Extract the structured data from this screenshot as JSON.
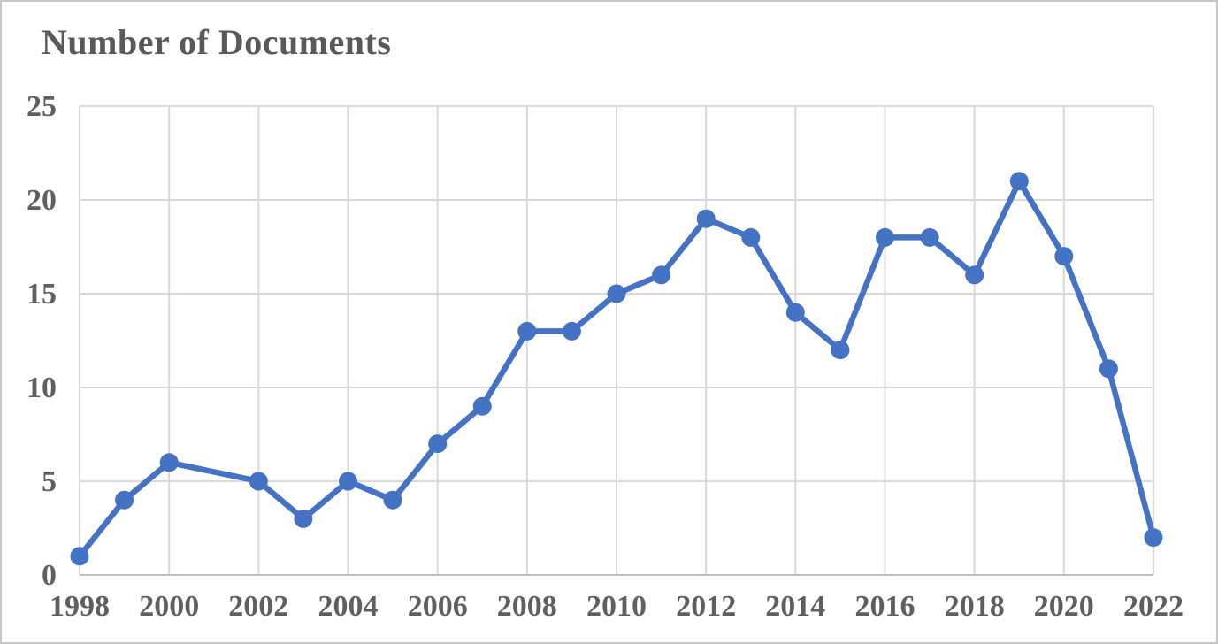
{
  "figure": {
    "title": "Number of Documents"
  },
  "chart_data": {
    "type": "line",
    "title": "Number of Documents",
    "x": [
      1998,
      1999,
      2000,
      2001,
      2002,
      2003,
      2004,
      2005,
      2006,
      2007,
      2008,
      2009,
      2010,
      2011,
      2012,
      2013,
      2014,
      2015,
      2016,
      2017,
      2018,
      2019,
      2020,
      2021,
      2022
    ],
    "series": [
      {
        "name": "Number of Documents",
        "values": [
          1,
          4,
          6,
          null,
          5,
          3,
          5,
          4,
          7,
          9,
          13,
          13,
          15,
          16,
          19,
          18,
          14,
          12,
          18,
          18,
          16,
          21,
          17,
          11,
          2
        ]
      }
    ],
    "xlim": [
      1998,
      2022
    ],
    "ylim": [
      0,
      25
    ],
    "y_ticks": [
      0,
      5,
      10,
      15,
      20,
      25
    ],
    "x_ticks": [
      1998,
      2000,
      2002,
      2004,
      2006,
      2008,
      2010,
      2012,
      2014,
      2016,
      2018,
      2020,
      2022
    ],
    "xlabel": "",
    "ylabel": "",
    "grid": true,
    "legend_position": "none",
    "marker": "circle",
    "line_color": "#4472C4",
    "marker_color": "#4472C4",
    "grid_color": "#D9D9D9",
    "axis_color": "#BFBFBF",
    "tick_text_color": "#5F5F5F",
    "title_color": "#595959",
    "background": "#FFFFFF",
    "frame_border_color": "#C5C5C5"
  }
}
